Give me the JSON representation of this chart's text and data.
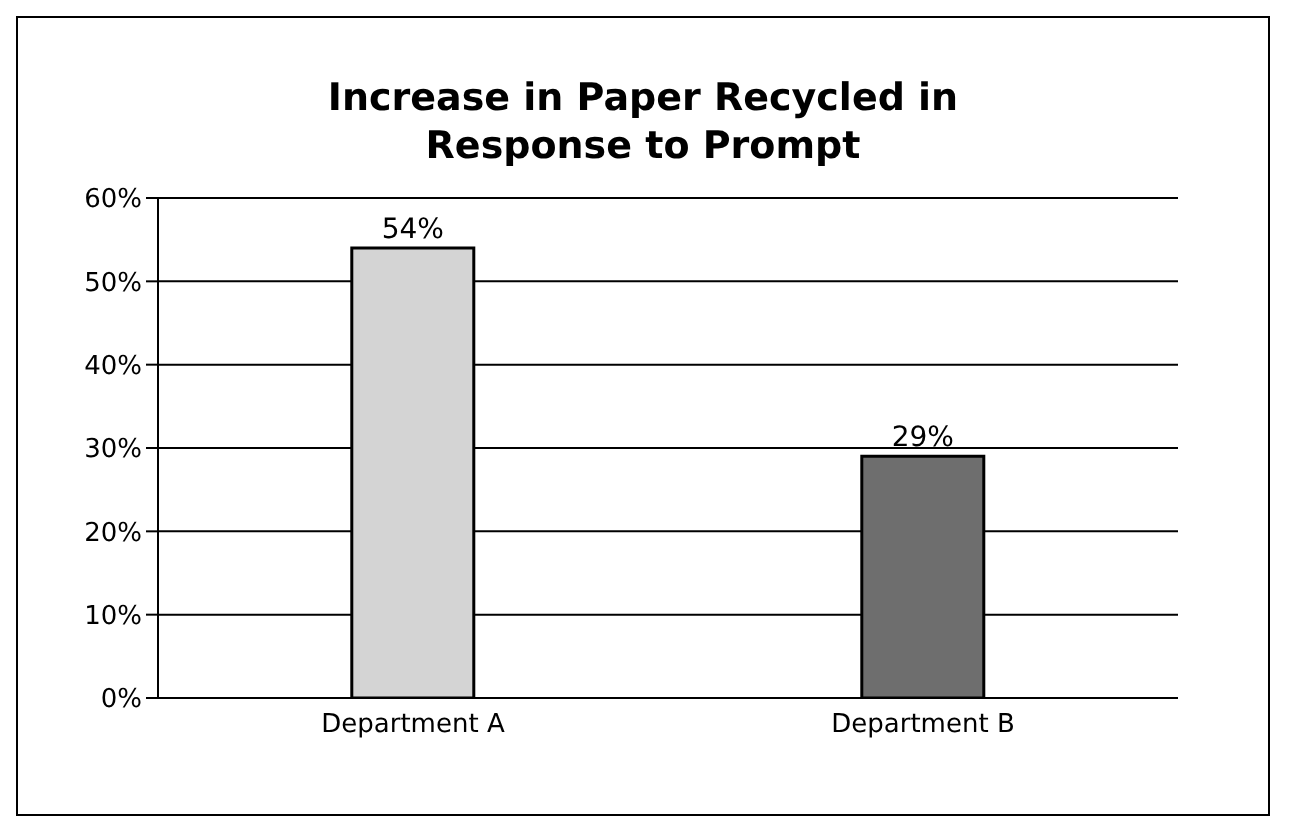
{
  "chart_data": {
    "type": "bar",
    "title": "Increase in Paper Recycled in Response to Prompt",
    "categories": [
      "Department A",
      "Department B"
    ],
    "values": [
      54,
      29
    ],
    "colors": [
      "#d4d4d4",
      "#6e6e6e"
    ],
    "value_labels": [
      "54%",
      "29%"
    ],
    "ylim": [
      0,
      60
    ],
    "yticks": [
      {
        "value": 0,
        "label": "0%"
      },
      {
        "value": 10,
        "label": "10%"
      },
      {
        "value": 20,
        "label": "20%"
      },
      {
        "value": 30,
        "label": "30%"
      },
      {
        "value": 40,
        "label": "40%"
      },
      {
        "value": 50,
        "label": "50%"
      },
      {
        "value": 60,
        "label": "60%"
      }
    ],
    "grid": "y",
    "legend": false
  }
}
